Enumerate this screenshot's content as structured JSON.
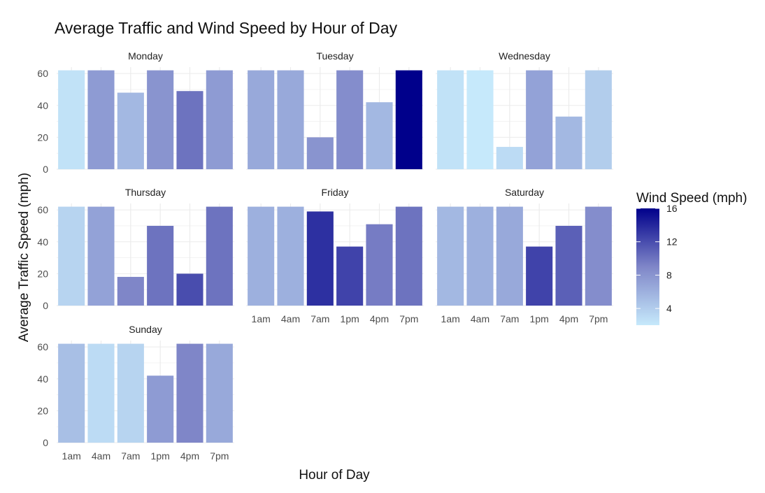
{
  "chart_data": {
    "type": "bar",
    "title": "Average Traffic and Wind Speed by Hour of Day",
    "xlabel": "Hour of Day",
    "ylabel": "Average Traffic Speed (mph)",
    "categories": [
      "1am",
      "4am",
      "7am",
      "1pm",
      "4pm",
      "7pm"
    ],
    "ylim": [
      0,
      64
    ],
    "y_ticks": [
      0,
      20,
      40,
      60
    ],
    "grid": true,
    "legend": {
      "title": "Wind Speed (mph)",
      "placement": "right",
      "ticks": [
        4,
        8,
        12,
        16
      ],
      "range": [
        2,
        16
      ],
      "low_color": "#c6e9fb",
      "high_color": "#00008b"
    },
    "facets": [
      {
        "name": "Monday",
        "values": [
          62,
          62,
          48,
          62,
          49,
          62
        ],
        "wind": [
          2.5,
          7.5,
          5.5,
          8,
          10,
          7.5
        ]
      },
      {
        "name": "Tuesday",
        "values": [
          62,
          62,
          20,
          62,
          42,
          62
        ],
        "wind": [
          6.5,
          6.5,
          8,
          8.5,
          5.5,
          16
        ]
      },
      {
        "name": "Wednesday",
        "values": [
          62,
          62,
          14,
          62,
          33,
          62
        ],
        "wind": [
          2.5,
          2,
          3,
          7,
          5.5,
          4
        ]
      },
      {
        "name": "Thursday",
        "values": [
          62,
          62,
          18,
          50,
          20,
          62
        ],
        "wind": [
          3.5,
          7,
          9,
          10,
          12,
          10
        ]
      },
      {
        "name": "Friday",
        "values": [
          62,
          62,
          59,
          37,
          51,
          62
        ],
        "wind": [
          6,
          6,
          13.5,
          12.5,
          9.5,
          10
        ]
      },
      {
        "name": "Saturday",
        "values": [
          62,
          62,
          62,
          37,
          50,
          62
        ],
        "wind": [
          5.5,
          6,
          6.5,
          12.5,
          11,
          8.5
        ]
      },
      {
        "name": "Sunday",
        "values": [
          62,
          62,
          62,
          42,
          62,
          62
        ],
        "wind": [
          5,
          3,
          3.5,
          7.5,
          9,
          6.5
        ]
      }
    ]
  }
}
